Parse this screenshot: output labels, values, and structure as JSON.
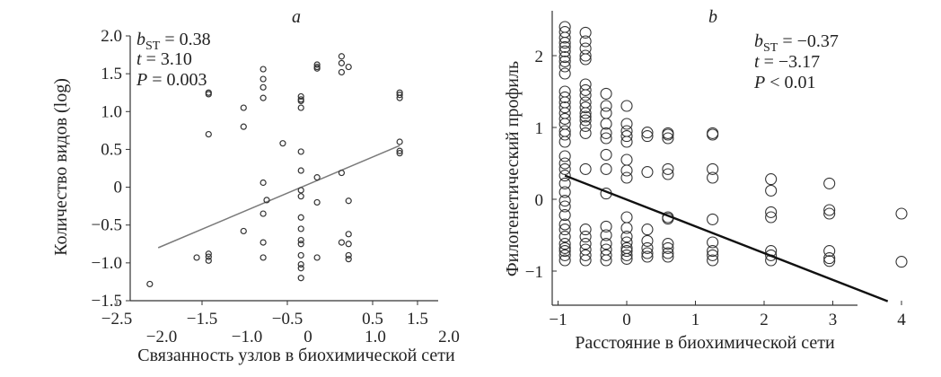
{
  "chart_data": [
    {
      "type": "scatter",
      "panel_label": "a",
      "xlabel": "Связанность узлов в биохимической сети",
      "ylabel": "Количество видов (log)",
      "xlim": [
        -2.5,
        2.0
      ],
      "ylim": [
        -1.5,
        2.0
      ],
      "x_ticks_upper": [
        "−2.5",
        "−1.5",
        "−0.5",
        "0.5",
        "1.5"
      ],
      "x_ticks_lower": [
        "−2.0",
        "−1.0",
        "0",
        "1.0",
        "2.0"
      ],
      "y_ticks": [
        "2.0",
        "1.5",
        "1.0",
        "0.5",
        "0",
        "−0.5",
        "−1.0",
        "−1.5"
      ],
      "stats": {
        "b_prefix": "b",
        "b_sub": "ST",
        "b_value": " = 0.38",
        "t_prefix": "t",
        "t_value": " = 3.10",
        "p_prefix": "P",
        "p_value": " = 0.003"
      },
      "regression": {
        "x": [
          -2.0,
          1.45
        ],
        "y": [
          -0.8,
          0.55
        ]
      },
      "points": [
        [
          -2.12,
          -1.28
        ],
        [
          -1.45,
          -0.93
        ],
        [
          -1.28,
          1.25
        ],
        [
          -1.28,
          1.23
        ],
        [
          -1.28,
          0.7
        ],
        [
          -1.28,
          -0.88
        ],
        [
          -1.28,
          -0.92
        ],
        [
          -1.28,
          -0.97
        ],
        [
          -0.78,
          1.05
        ],
        [
          -0.78,
          0.8
        ],
        [
          -0.78,
          -0.58
        ],
        [
          -0.5,
          1.56
        ],
        [
          -0.5,
          1.43
        ],
        [
          -0.5,
          1.32
        ],
        [
          -0.5,
          1.18
        ],
        [
          -0.5,
          0.06
        ],
        [
          -0.5,
          -0.35
        ],
        [
          -0.5,
          -0.73
        ],
        [
          -0.5,
          -0.93
        ],
        [
          -0.45,
          -0.17
        ],
        [
          -0.22,
          0.58
        ],
        [
          0.04,
          1.2
        ],
        [
          0.04,
          1.16
        ],
        [
          0.04,
          1.14
        ],
        [
          0.04,
          1.05
        ],
        [
          0.04,
          0.47
        ],
        [
          0.04,
          0.22
        ],
        [
          0.04,
          -0.04
        ],
        [
          0.04,
          -0.12
        ],
        [
          0.04,
          -0.4
        ],
        [
          0.04,
          -0.55
        ],
        [
          0.04,
          -0.7
        ],
        [
          0.04,
          -0.75
        ],
        [
          0.04,
          -0.9
        ],
        [
          0.04,
          -1.02
        ],
        [
          0.04,
          -1.07
        ],
        [
          0.04,
          -1.2
        ],
        [
          0.27,
          1.62
        ],
        [
          0.27,
          1.59
        ],
        [
          0.27,
          1.57
        ],
        [
          0.27,
          0.13
        ],
        [
          0.27,
          -0.2
        ],
        [
          0.27,
          -0.93
        ],
        [
          0.62,
          1.73
        ],
        [
          0.62,
          1.64
        ],
        [
          0.62,
          1.52
        ],
        [
          0.62,
          0.19
        ],
        [
          0.62,
          -0.73
        ],
        [
          0.72,
          1.59
        ],
        [
          0.72,
          -0.18
        ],
        [
          0.72,
          -0.62
        ],
        [
          0.72,
          -0.75
        ],
        [
          0.72,
          -0.9
        ],
        [
          0.72,
          -0.95
        ],
        [
          1.45,
          1.25
        ],
        [
          1.45,
          1.22
        ],
        [
          1.45,
          1.18
        ],
        [
          1.45,
          0.6
        ],
        [
          1.45,
          0.48
        ],
        [
          1.45,
          0.45
        ]
      ]
    },
    {
      "type": "scatter",
      "panel_label": "b",
      "xlabel": "Расстояние в биохимической сети",
      "ylabel": "Филогенетический профиль",
      "xlim": [
        -1.3,
        4.4
      ],
      "ylim": [
        -1.3,
        2.5
      ],
      "x_ticks": [
        "−1",
        "0",
        "1",
        "2",
        "3",
        "4"
      ],
      "y_ticks": [
        "2",
        "1",
        "0",
        "−1"
      ],
      "stats": {
        "b_prefix": "b",
        "b_sub": "ST",
        "b_value": " = −0.37",
        "t_prefix": "t",
        "t_value": " = −3.17",
        "p_prefix": "P",
        "p_value": " < 0.01"
      },
      "regression": {
        "x": [
          -0.9,
          3.8
        ],
        "y": [
          0.33,
          -1.42
        ]
      },
      "point_groups": [
        {
          "x": -0.9,
          "y": [
            2.4,
            2.33,
            2.25,
            2.18,
            2.12,
            2.06,
            1.98,
            1.92,
            1.85,
            1.75,
            1.5,
            1.42,
            1.35,
            1.28,
            1.2,
            1.12,
            1.05,
            0.95,
            0.9,
            0.8,
            0.6,
            0.5,
            0.42,
            0.33,
            0.22,
            0.1,
            -0.02,
            -0.1,
            -0.22,
            -0.35,
            -0.42,
            -0.52,
            -0.62,
            -0.68,
            -0.72,
            -0.78,
            -0.85
          ]
        },
        {
          "x": -0.6,
          "y": [
            2.32,
            2.2,
            2.1,
            2.0,
            1.95,
            1.6,
            1.52,
            1.45,
            1.35,
            1.28,
            1.2,
            1.15,
            1.1,
            1.02,
            0.92,
            0.42,
            -0.42,
            -0.52,
            -0.62,
            -0.7,
            -0.78,
            -0.85
          ]
        },
        {
          "x": -0.3,
          "y": [
            1.47,
            1.3,
            1.2,
            1.05,
            0.92,
            0.85,
            0.62,
            0.42,
            0.08,
            -0.38,
            -0.5,
            -0.62,
            -0.7,
            -0.78,
            -0.85
          ]
        },
        {
          "x": 0.0,
          "y": [
            1.3,
            1.05,
            0.95,
            0.88,
            0.8,
            0.55,
            0.4,
            0.3,
            -0.25,
            -0.4,
            -0.52,
            -0.6,
            -0.68,
            -0.72,
            -0.78,
            -0.83
          ]
        },
        {
          "x": 0.3,
          "y": [
            0.93,
            0.88,
            0.38,
            -0.42,
            -0.58,
            -0.68,
            -0.75,
            -0.8
          ]
        },
        {
          "x": 0.6,
          "y": [
            0.92,
            0.9,
            0.85,
            0.42,
            0.35,
            -0.25,
            -0.27,
            -0.62,
            -0.68,
            -0.75,
            -0.8
          ]
        },
        {
          "x": 1.25,
          "y": [
            0.92,
            0.9,
            0.42,
            0.3,
            -0.28,
            -0.6,
            -0.72,
            -0.78,
            -0.85
          ]
        },
        {
          "x": 2.1,
          "y": [
            0.28,
            0.12,
            -0.18,
            -0.25,
            -0.72,
            -0.78,
            -0.85
          ]
        },
        {
          "x": 2.95,
          "y": [
            0.22,
            -0.15,
            -0.2,
            -0.72,
            -0.82,
            -0.86
          ]
        },
        {
          "x": 4.0,
          "y": [
            -0.2,
            -0.87
          ]
        }
      ]
    }
  ]
}
